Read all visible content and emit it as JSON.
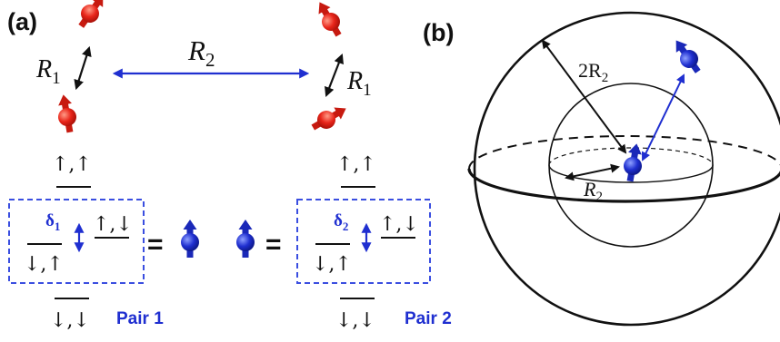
{
  "panel_a": {
    "label": "(a)",
    "r1_symbol": "R",
    "r1_subscript": "1",
    "r2_symbol": "R",
    "r2_subscript": "2",
    "pairs": [
      {
        "label": "Pair 1",
        "delta_symbol": "δ",
        "delta_subscript": "1",
        "state_upup": "↑,↑",
        "state_updown": "↑,↓",
        "state_downup": "↓,↑",
        "state_downdown": "↓,↓",
        "equals": "="
      },
      {
        "label": "Pair 2",
        "delta_symbol": "δ",
        "delta_subscript": "2",
        "state_upup": "↑,↑",
        "state_updown": "↑,↓",
        "state_downup": "↓,↑",
        "state_downdown": "↓,↓",
        "equals": "="
      }
    ]
  },
  "panel_b": {
    "label": "(b)",
    "outer_radius_label": "2R",
    "outer_radius_subscript": "2",
    "inner_radius_label": "R",
    "inner_radius_subscript": "2"
  },
  "colors": {
    "red_spin": "#e8251a",
    "blue_spin": "#1f2fd0",
    "black": "#111111",
    "dashed_box": "#3a4ee0"
  },
  "icons": [
    "red-spin-icon",
    "blue-spin-icon",
    "double-arrow-icon"
  ]
}
